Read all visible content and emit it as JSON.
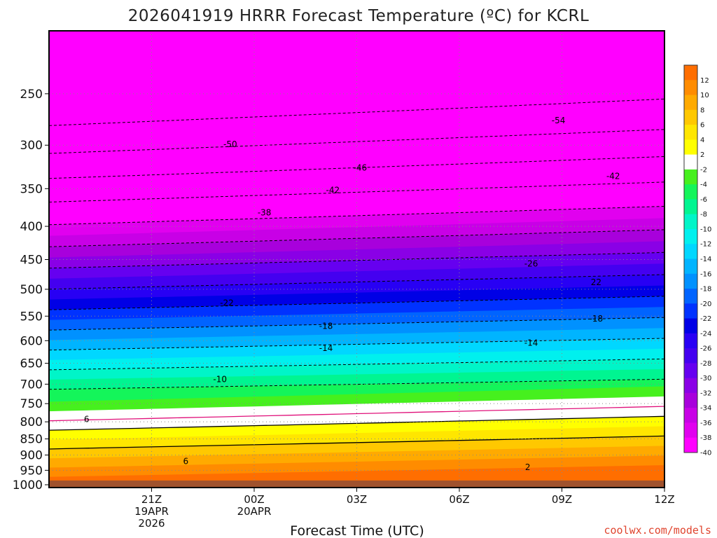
{
  "chart_data": {
    "type": "heatmap",
    "title": "2026041919 HRRR Forecast Temperature (ºC) for KCRL",
    "xlabel": "Forecast Time (UTC)",
    "source": "coolwx.com/models",
    "x_ticks": [
      {
        "lines": [
          "21Z",
          "19APR",
          "2026"
        ]
      },
      {
        "lines": [
          "00Z",
          "20APR"
        ]
      },
      {
        "lines": [
          "03Z"
        ]
      },
      {
        "lines": [
          "06Z"
        ]
      },
      {
        "lines": [
          "09Z"
        ]
      },
      {
        "lines": [
          "12Z"
        ]
      }
    ],
    "x_range_hours": [
      -1,
      17
    ],
    "x_tick_hours": [
      2,
      5,
      8,
      11,
      14,
      17
    ],
    "y_ticks": [
      250,
      300,
      350,
      400,
      450,
      500,
      550,
      600,
      650,
      700,
      750,
      800,
      850,
      900,
      950,
      1000
    ],
    "y_tick_labels": [
      "250",
      "300",
      "350",
      "400",
      "450",
      "500",
      "550",
      "600",
      "650",
      "700",
      "750",
      "800",
      "850",
      "900",
      "950",
      "1000"
    ],
    "y_range_hpa": [
      200,
      1010
    ],
    "y_scale": "log-pressure",
    "surface_pressure_hpa": 985,
    "colorbar": {
      "levels": [
        -40,
        -38,
        -36,
        -34,
        -32,
        -30,
        -28,
        -26,
        -24,
        -22,
        -20,
        -18,
        -16,
        -14,
        -12,
        -10,
        -8,
        -6,
        -4,
        -2,
        2,
        4,
        6,
        8,
        10,
        12
      ],
      "labels": [
        "-40",
        "-38",
        "-36",
        "-34",
        "-32",
        "-30",
        "-28",
        "-26",
        "-24",
        "-22",
        "-20",
        "-18",
        "-16",
        "-14",
        "-12",
        "-10",
        "-8",
        "-6",
        "-4",
        "-2",
        "2",
        "4",
        "6",
        "8",
        "10",
        "12"
      ],
      "colors": [
        "#ff00ff",
        "#e100ef",
        "#c800e6",
        "#a800dc",
        "#8a00e6",
        "#6600f0",
        "#4400f0",
        "#2800f4",
        "#0000e6",
        "#0032ff",
        "#0064ff",
        "#0091ff",
        "#00b4ff",
        "#00d7ff",
        "#00f0ee",
        "#00f5c8",
        "#00f591",
        "#14f55a",
        "#46f01e",
        "#ffffff",
        "#ffff00",
        "#ffe600",
        "#ffc800",
        "#ffaa00",
        "#ff8c00",
        "#ff6e00"
      ]
    },
    "contour_labels": [
      {
        "text": "-54",
        "hour": 13.9,
        "hpa": 275
      },
      {
        "text": "-50",
        "hour": 4.3,
        "hpa": 299
      },
      {
        "text": "-46",
        "hour": 8.1,
        "hpa": 325
      },
      {
        "text": "-42",
        "hour": 7.3,
        "hpa": 352
      },
      {
        "text": "-42",
        "hour": 15.5,
        "hpa": 335
      },
      {
        "text": "-38",
        "hour": 5.3,
        "hpa": 381
      },
      {
        "text": "-26",
        "hour": 13.1,
        "hpa": 457
      },
      {
        "text": "22",
        "hour": 15.0,
        "hpa": 488
      },
      {
        "text": "-22",
        "hour": 4.2,
        "hpa": 525
      },
      {
        "text": "-18",
        "hour": 7.1,
        "hpa": 570
      },
      {
        "text": "-18",
        "hour": 15.0,
        "hpa": 555
      },
      {
        "text": "-14",
        "hour": 7.1,
        "hpa": 616
      },
      {
        "text": "-14",
        "hour": 13.1,
        "hpa": 605
      },
      {
        "text": "-10",
        "hour": 4.0,
        "hpa": 688
      },
      {
        "text": "6",
        "hour": 0.1,
        "hpa": 793
      },
      {
        "text": "6",
        "hour": 3.0,
        "hpa": 920
      },
      {
        "text": "2",
        "hour": 13.0,
        "hpa": 940
      }
    ]
  }
}
